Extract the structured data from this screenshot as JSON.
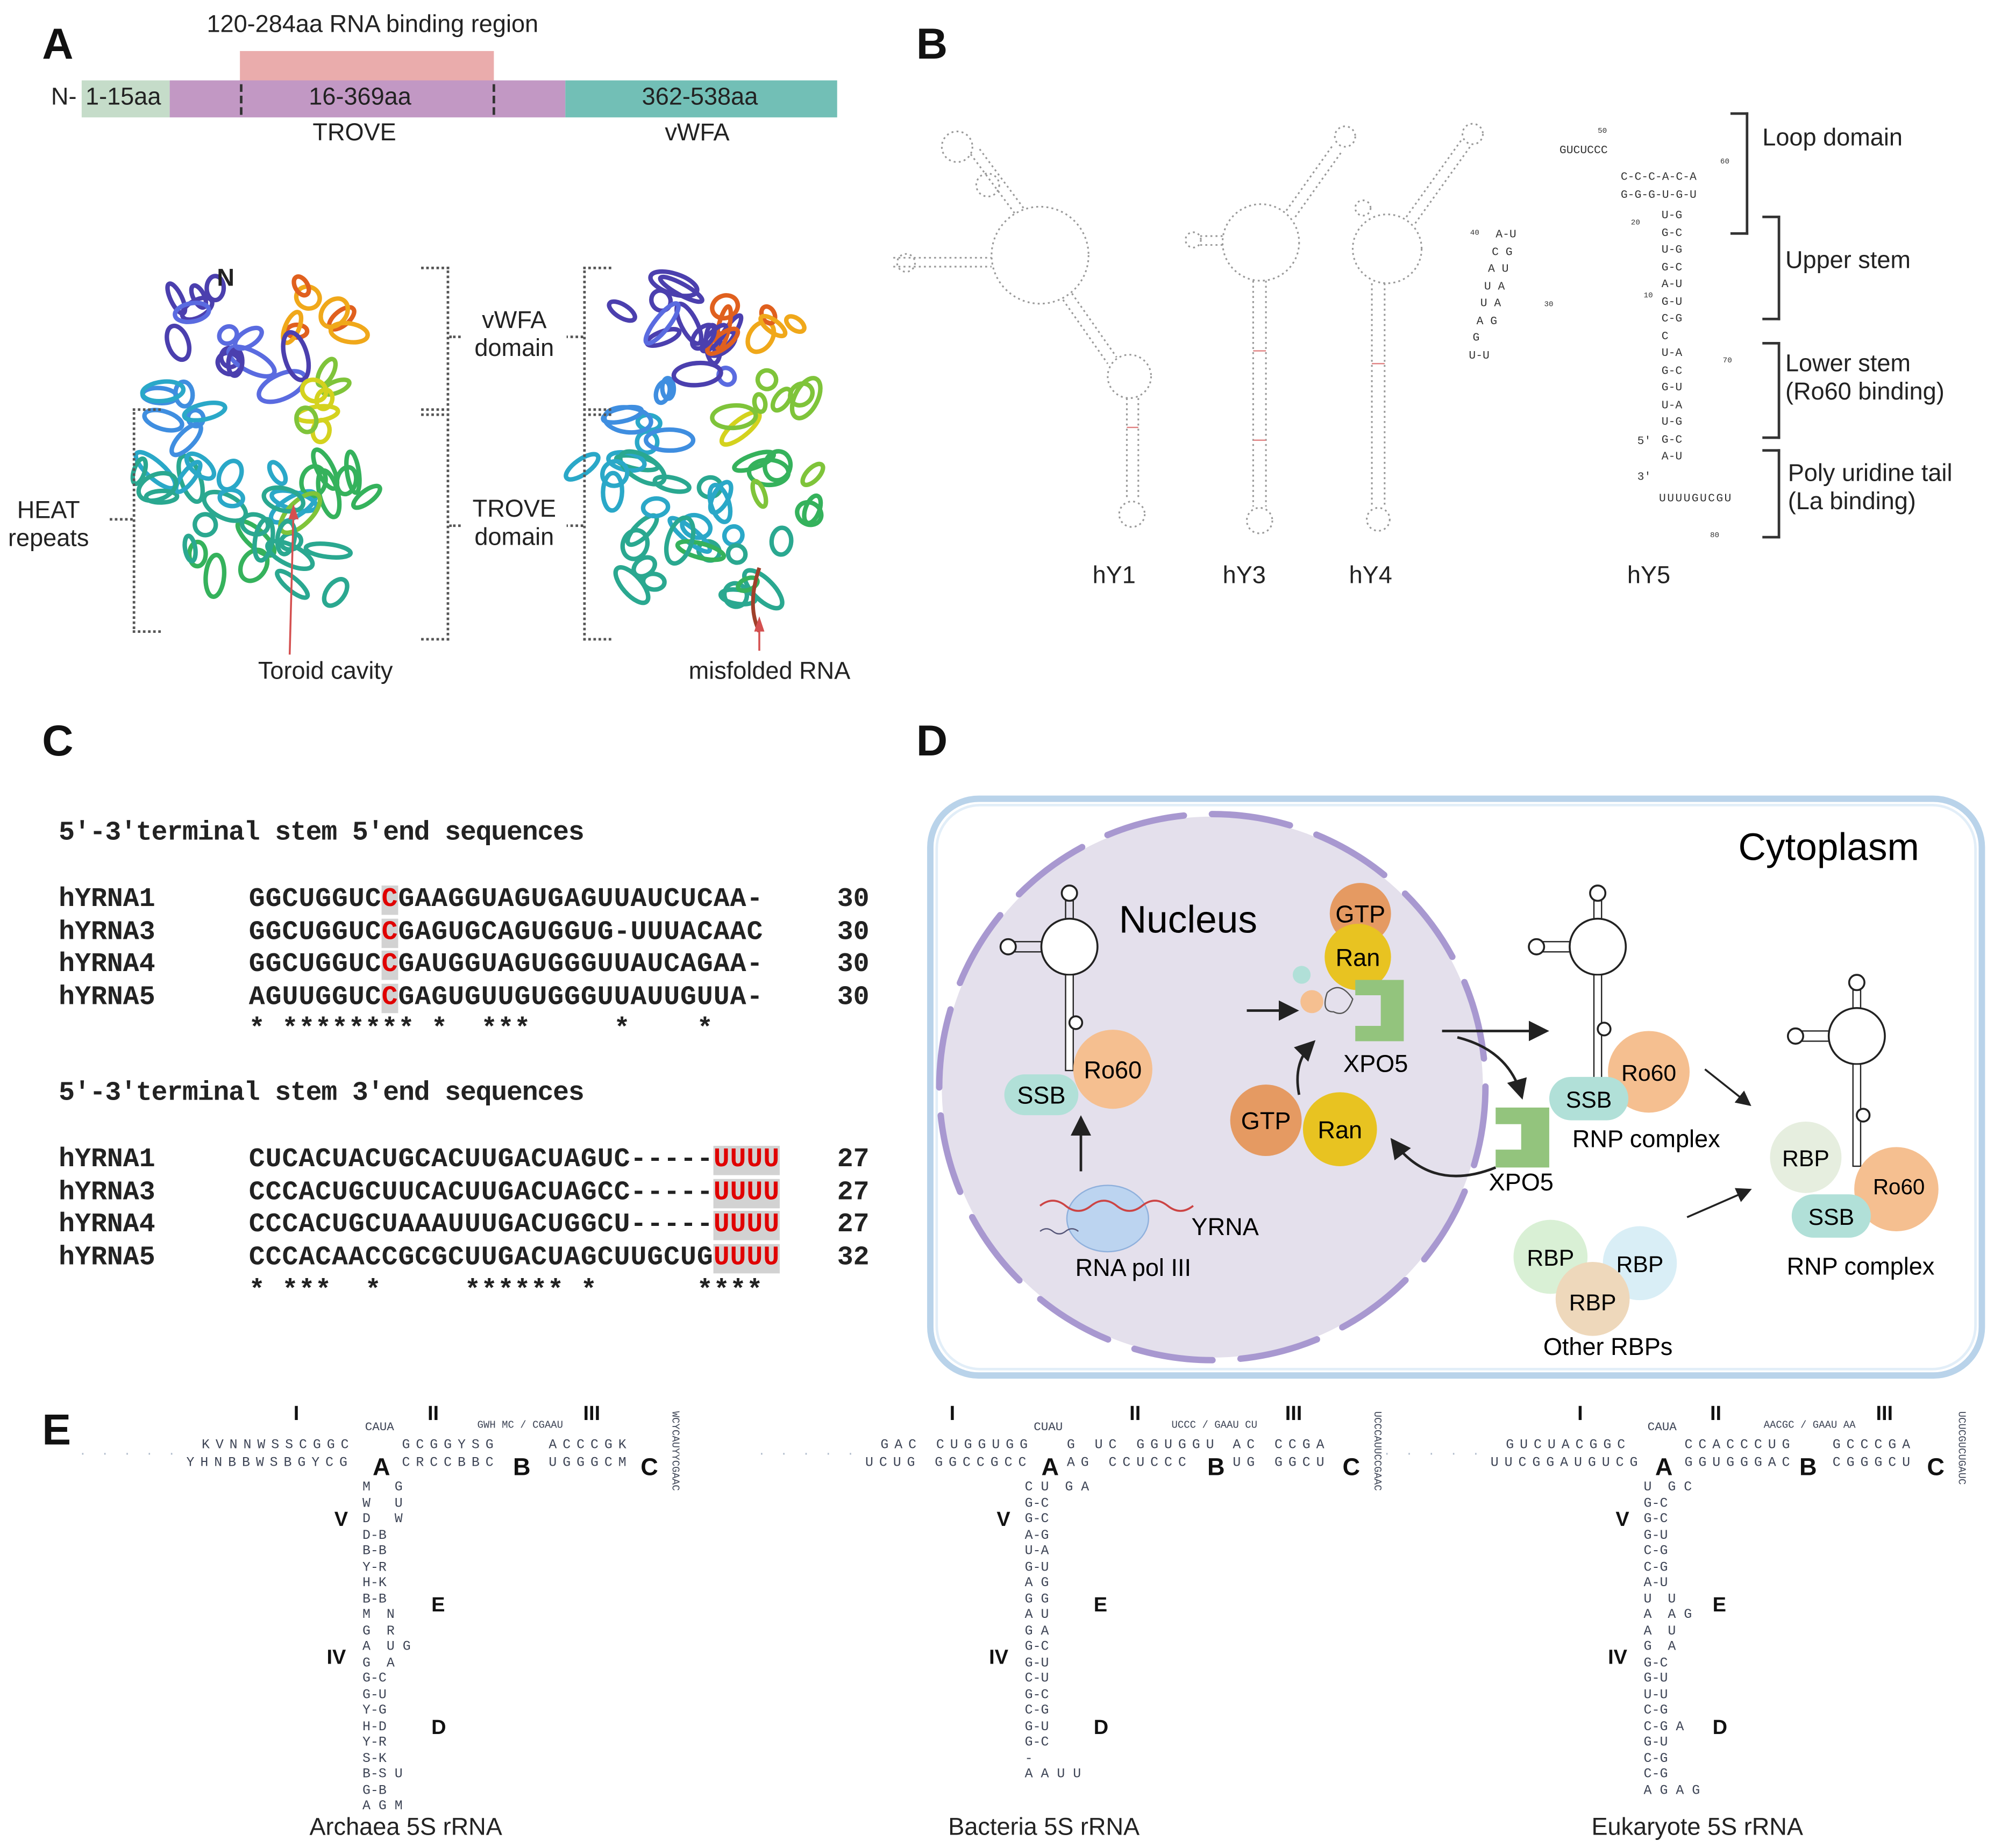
{
  "panel_labels": [
    "A",
    "B",
    "C",
    "D",
    "E"
  ],
  "panelA": {
    "rna_binding_region": "120-284aa RNA binding region",
    "n_term": "N-",
    "segments": [
      {
        "label": "1-15aa",
        "color": "#c5dcc9"
      },
      {
        "label": "16-369aa",
        "color": "#c298c4",
        "domain": "TROVE"
      },
      {
        "label": "362-538aa",
        "color": "#72bfb6",
        "domain": "vWFA"
      }
    ],
    "rna_binding_color": "#eaacac",
    "structure_n_label": "N",
    "vwfa_domain": "vWFA\ndomain",
    "trove_domain": "TROVE\ndomain",
    "heat_repeats": "HEAT\nrepeats",
    "toroid_cavity": "Toroid cavity",
    "misfolded_rna": "misfolded RNA"
  },
  "panelB": {
    "structures": [
      "hY1",
      "hY3",
      "hY4",
      "hY5"
    ],
    "regions": [
      "Loop domain",
      "Upper stem",
      "Lower stem\n(Ro60 binding)",
      "Poly uridine tail\n(La binding)"
    ],
    "hY5": {
      "loop_top": "C-C-C-A-C-A",
      "loop_bottom": "G-G-G-U-G-U",
      "big_loop": "GUCUCCC",
      "stem_pairs": [
        "U-G",
        "G-C",
        "U-G",
        "G-C",
        "A-U",
        "G-U",
        "C-G",
        "C",
        "U-A",
        "G-C",
        "G-U",
        "U-A",
        "U-G",
        "G-C",
        "A-U"
      ],
      "arm": [
        "A-U",
        "C G",
        "A U",
        "U A",
        "U A",
        "A G",
        "G",
        "U-U"
      ],
      "tail": "UUUUGUCGU",
      "five_prime": "5'",
      "three_prime": "3'",
      "numbers": [
        "10",
        "20",
        "30",
        "40",
        "50",
        "60",
        "70",
        "80"
      ]
    }
  },
  "panelC": {
    "head5": "5′-3′terminal stem 5′end sequences",
    "head3": "5′-3′terminal stem 3′end sequences",
    "five_end": [
      {
        "name": "hYRNA1",
        "pre": "GGCUGGUC",
        "hl": "C",
        "post": "GAAGGUAGUGAGUUAUCUCAA-",
        "count": "30"
      },
      {
        "name": "hYRNA3",
        "pre": "GGCUGGUC",
        "hl": "C",
        "post": "GAGUGCAGUGGUG-UUUACAAC",
        "count": "30"
      },
      {
        "name": "hYRNA4",
        "pre": "GGCUGGUC",
        "hl": "C",
        "post": "GAUGGUAGUGGGUUAUCAGAA-",
        "count": "30"
      },
      {
        "name": "hYRNA5",
        "pre": "AGUUGGUC",
        "hl": "C",
        "post": "GAGUGUUGUGGGUUAUUGUUA-",
        "count": "30"
      }
    ],
    "five_stars": "* ******** *  ***     *    *",
    "three_end": [
      {
        "name": "hYRNA1",
        "pre": "CUCACUACUGCACUUGACUAGUC-----",
        "hl": "UUUU",
        "post": "",
        "count": "27"
      },
      {
        "name": "hYRNA3",
        "pre": "CCCACUGCUUCACUUGACUAGCC-----",
        "hl": "UUUU",
        "post": "",
        "count": "27"
      },
      {
        "name": "hYRNA4",
        "pre": "CCCACUGCUAAAUUUGACUGGCU-----",
        "hl": "UUUU",
        "post": "",
        "count": "27"
      },
      {
        "name": "hYRNA5",
        "pre": "CCCACAACCGCGCUUGACUAGCUUGCUG",
        "hl": "UUUU",
        "post": "",
        "count": "32"
      }
    ],
    "three_stars": "* ***  *     ****** *      ****",
    "highlight_color": "#e00000"
  },
  "panelD": {
    "cytoplasm": "Cytoplasm",
    "nucleus": "Nucleus",
    "gtp": "GTP",
    "ran": "Ran",
    "ro60": "Ro60",
    "ssb": "SSB",
    "xpo5": "XPO5",
    "rbp": "RBP",
    "rnp_complex": "RNP complex",
    "other_rbps": "Other RBPs",
    "yrna": "YRNA",
    "rna_pol": "RNA pol III",
    "colors": {
      "gtp": "#e59a62",
      "ran": "#e8c321",
      "ro60": "#f5bf90",
      "ssb": "#b1e0d8",
      "xpo5": "#93c47d",
      "nucleus": "#e4e0ec",
      "membrane": "#a898d0"
    }
  },
  "panelE": {
    "organisms": [
      {
        "caption": "Archaea 5S rRNA",
        "top1": "KVNNWSSCGGC",
        "bot1": "YHNBBWSBGYCG",
        "top2": "GCGGYSG",
        "bot2": "CRCCBBC",
        "top3": "ACCCGK",
        "bot3": "UGGGCM",
        "loopA": "CAUA",
        "loopB": "GWH MC / CGAAU",
        "loopC": "WCYCAUYYCGAAC",
        "stem": [
          "M   G",
          "W   U",
          "D   W",
          "D-B",
          "B-B",
          "Y-R",
          "H-K",
          "B-B",
          "M  N",
          "G  R",
          "A  U G",
          "G  A",
          "G-C",
          "G-U",
          "Y-G",
          "H-D",
          "Y-R",
          "S-K",
          "B-S U",
          "G-B",
          "A G M"
        ]
      },
      {
        "caption": "Bacteria 5S rRNA",
        "top1": "GAC CUGGUGG",
        "bot1": "UCUG GGCCGCC",
        "top2": "G UC GGUGGU",
        "bot2": "AG CCUCCC",
        "top3": "AC CCGA",
        "bot3": "UG GGCU",
        "loopA": "CUAU",
        "loopB": "UCCC / GAAU CU",
        "loopC": "UCCCAUUCCGAAC",
        "stem": [
          "C U  G A",
          "G-C",
          "G-C",
          "A-G",
          "U-A",
          "G-U",
          "A G",
          "G G",
          "A U",
          "G A",
          "G-C",
          "G-U",
          "C-U",
          "G-C",
          "C-G",
          "G-U",
          "G-C",
          "-",
          "A A U U"
        ]
      },
      {
        "caption": "Eukaryote 5S rRNA",
        "top1": "GUCUACGGC",
        "bot1": "UUCGGAUGUCG",
        "top2": "CCACCCUG",
        "bot2": "GGUGGGAC",
        "top3": "GCCCGA",
        "bot3": "CGGGCU",
        "loopA": "CAUA",
        "loopB": "AACGC / GAAU AA",
        "loopC": "UCUCGUCUGAUC",
        "stem": [
          "U  G C",
          "G-C",
          "G-C",
          "G-U",
          "C-G",
          "C-G",
          "A-U",
          "U  U",
          "A  A G",
          "A  U",
          "G  A",
          "G-C",
          "G-U",
          "U-U",
          "C-G",
          "C-G A",
          "G-U",
          "C-G",
          "C-G",
          "A G A G"
        ]
      }
    ],
    "roman": [
      "I",
      "II",
      "III",
      "V",
      "E",
      "IV",
      "D"
    ],
    "loops": [
      "A",
      "B",
      "C"
    ]
  }
}
